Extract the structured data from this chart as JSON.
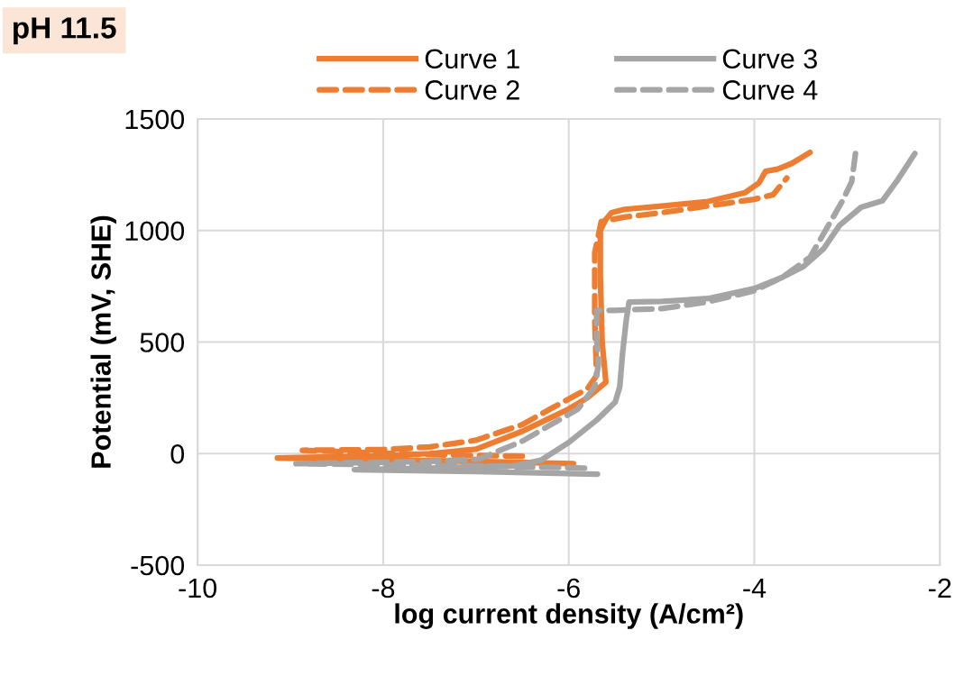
{
  "chart_data": {
    "type": "line",
    "title": "pH 11.5",
    "xlabel": "log current density (A/cm²)",
    "ylabel": "Potential (mV, SHE)",
    "xlim": [
      -10,
      -2
    ],
    "xticks": [
      -10,
      -8,
      -6,
      -4,
      -2
    ],
    "ylim": [
      -500,
      1500
    ],
    "yticks": [
      -500,
      0,
      500,
      1000,
      1500
    ],
    "grid": true,
    "legend": "top",
    "marker": "none",
    "series": [
      {
        "name": "Curve 1",
        "color": "#ed7d31",
        "line_style": "solid",
        "x": [
          -5.95,
          -7,
          -8,
          -9.14,
          -8,
          -7.5,
          -7,
          -6.5,
          -6.2,
          -6,
          -5.8,
          -5.6,
          -5.64,
          -5.66,
          -5.66,
          -5.6,
          -5.54,
          -5.4,
          -5,
          -4.5,
          -4.1,
          -3.95,
          -3.88,
          -3.75,
          -3.6,
          -3.4
        ],
        "values": [
          -45,
          -35,
          -28,
          -20,
          -10,
          0,
          20,
          100,
          160,
          200,
          250,
          320,
          500,
          800,
          1000,
          1050,
          1080,
          1095,
          1110,
          1130,
          1170,
          1213,
          1265,
          1275,
          1300,
          1350
        ]
      },
      {
        "name": "Curve 2",
        "color": "#ed7d31",
        "line_style": "dashed",
        "x": [
          -6.5,
          -7.5,
          -8.87,
          -8,
          -7.5,
          -7,
          -6.5,
          -6.2,
          -5.8,
          -5.7,
          -5.72,
          -5.72,
          -5.65,
          -5.4,
          -5,
          -4.5,
          -4,
          -3.8,
          -3.65
        ],
        "values": [
          -12,
          -5,
          15,
          18,
          30,
          60,
          130,
          200,
          290,
          350,
          600,
          900,
          1040,
          1060,
          1080,
          1110,
          1140,
          1160,
          1235
        ]
      },
      {
        "name": "Curve 3",
        "color": "#a5a5a5",
        "line_style": "solid",
        "x": [
          -5.69,
          -7,
          -8.31,
          -7.5,
          -6.6,
          -6.3,
          -6,
          -5.7,
          -5.5,
          -5.45,
          -5.42,
          -5.38,
          -5.35,
          -5,
          -4.5,
          -4,
          -3.7,
          -3.47,
          -3.25,
          -3.08,
          -2.85,
          -2.62,
          -2.45,
          -2.27
        ],
        "values": [
          -92,
          -80,
          -72,
          -65,
          -55,
          -30,
          50,
          150,
          230,
          300,
          450,
          600,
          679,
          682,
          695,
          740,
          790,
          839,
          920,
          1024,
          1104,
          1133,
          1230,
          1345
        ]
      },
      {
        "name": "Curve 4",
        "color": "#a5a5a5",
        "line_style": "dashed",
        "x": [
          -5.83,
          -7,
          -8.94,
          -7.5,
          -6.97,
          -6.5,
          -6.2,
          -5.9,
          -5.72,
          -5.68,
          -5.7,
          -5.7,
          -5.51,
          -5,
          -4.5,
          -4,
          -3.7,
          -3.4,
          -3.2,
          -3.05,
          -2.95,
          -2.91
        ],
        "values": [
          -65,
          -55,
          -45,
          -35,
          -25,
          56,
          128,
          200,
          300,
          400,
          520,
          642,
          642,
          650,
          680,
          730,
          790,
          880,
          1024,
          1133,
          1220,
          1345
        ]
      }
    ]
  }
}
